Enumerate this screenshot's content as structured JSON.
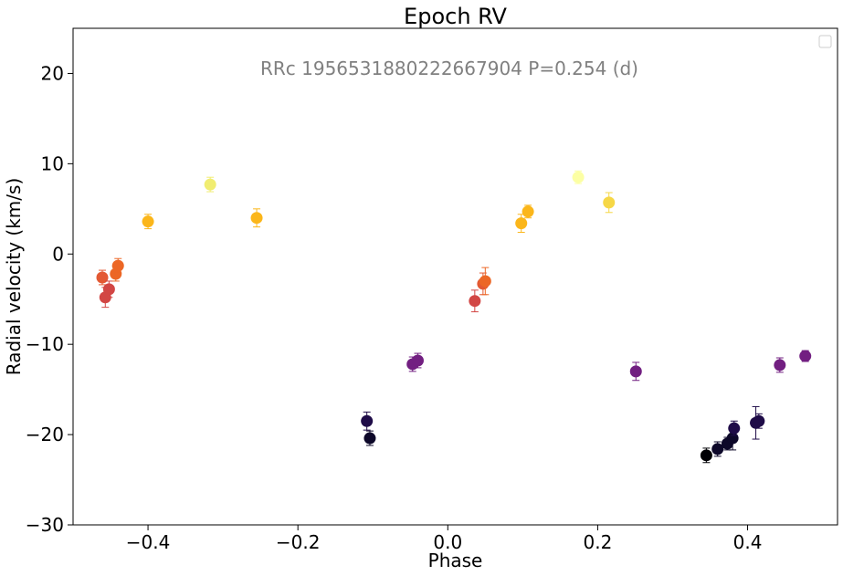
{
  "chart_data": {
    "type": "scatter",
    "title": "Epoch RV",
    "xlabel": "Phase",
    "ylabel": "Radial velocity (km/s)",
    "annotation": "RRc 1956531880222667904 P=0.254 (d)",
    "xlim": [
      -0.5,
      0.52
    ],
    "ylim": [
      -30,
      25
    ],
    "xticks": [
      -0.4,
      -0.2,
      0.0,
      0.2,
      0.4
    ],
    "xtick_labels": [
      "−0.4",
      "−0.2",
      "0.0",
      "0.2",
      "0.4"
    ],
    "yticks": [
      -30,
      -20,
      -10,
      0,
      10,
      20
    ],
    "ytick_labels": [
      "−30",
      "−20",
      "−10",
      "0",
      "10",
      "20"
    ],
    "grid": false,
    "legend": "top-right, empty",
    "colormap": "inferno",
    "points": [
      {
        "x": -0.461,
        "y": -2.6,
        "err": 0.8,
        "color": "#e35933"
      },
      {
        "x": -0.457,
        "y": -4.8,
        "err": 1.1,
        "color": "#d24644"
      },
      {
        "x": -0.452,
        "y": -3.9,
        "err": 0.9,
        "color": "#d24644"
      },
      {
        "x": -0.443,
        "y": -2.2,
        "err": 0.8,
        "color": "#ec6726"
      },
      {
        "x": -0.44,
        "y": -1.3,
        "err": 0.8,
        "color": "#ec6726"
      },
      {
        "x": -0.4,
        "y": 3.6,
        "err": 0.8,
        "color": "#fbb61a"
      },
      {
        "x": -0.317,
        "y": 7.7,
        "err": 0.8,
        "color": "#f1ed71"
      },
      {
        "x": -0.255,
        "y": 4.0,
        "err": 1.0,
        "color": "#fbb61a"
      },
      {
        "x": -0.108,
        "y": -18.5,
        "err": 1.0,
        "color": "#1f0c48"
      },
      {
        "x": -0.104,
        "y": -20.4,
        "err": 0.8,
        "color": "#0d0829"
      },
      {
        "x": -0.047,
        "y": -12.2,
        "err": 0.8,
        "color": "#721f81"
      },
      {
        "x": -0.04,
        "y": -11.8,
        "err": 0.8,
        "color": "#721f81"
      },
      {
        "x": 0.036,
        "y": -5.2,
        "err": 1.2,
        "color": "#d24644"
      },
      {
        "x": 0.047,
        "y": -3.3,
        "err": 1.2,
        "color": "#e35933"
      },
      {
        "x": 0.05,
        "y": -3.0,
        "err": 1.5,
        "color": "#ec6726"
      },
      {
        "x": 0.098,
        "y": 3.4,
        "err": 1.0,
        "color": "#fbb61a"
      },
      {
        "x": 0.107,
        "y": 4.7,
        "err": 0.7,
        "color": "#fbb61a"
      },
      {
        "x": 0.174,
        "y": 8.5,
        "err": 0.7,
        "color": "#fcffa4"
      },
      {
        "x": 0.215,
        "y": 5.7,
        "err": 1.1,
        "color": "#f6d746"
      },
      {
        "x": 0.251,
        "y": -13.0,
        "err": 1.0,
        "color": "#721f81"
      },
      {
        "x": 0.345,
        "y": -22.3,
        "err": 0.8,
        "color": "#000004"
      },
      {
        "x": 0.36,
        "y": -21.6,
        "err": 0.8,
        "color": "#0d0829"
      },
      {
        "x": 0.373,
        "y": -21.0,
        "err": 0.7,
        "color": "#0d0829"
      },
      {
        "x": 0.38,
        "y": -20.4,
        "err": 1.3,
        "color": "#0d0829"
      },
      {
        "x": 0.382,
        "y": -19.3,
        "err": 0.8,
        "color": "#1f0c48"
      },
      {
        "x": 0.411,
        "y": -18.7,
        "err": 1.8,
        "color": "#1f0c48"
      },
      {
        "x": 0.415,
        "y": -18.5,
        "err": 0.8,
        "color": "#1f0c48"
      },
      {
        "x": 0.443,
        "y": -12.3,
        "err": 0.8,
        "color": "#721f81"
      },
      {
        "x": 0.477,
        "y": -11.3,
        "err": 0.6,
        "color": "#721f81"
      }
    ]
  }
}
